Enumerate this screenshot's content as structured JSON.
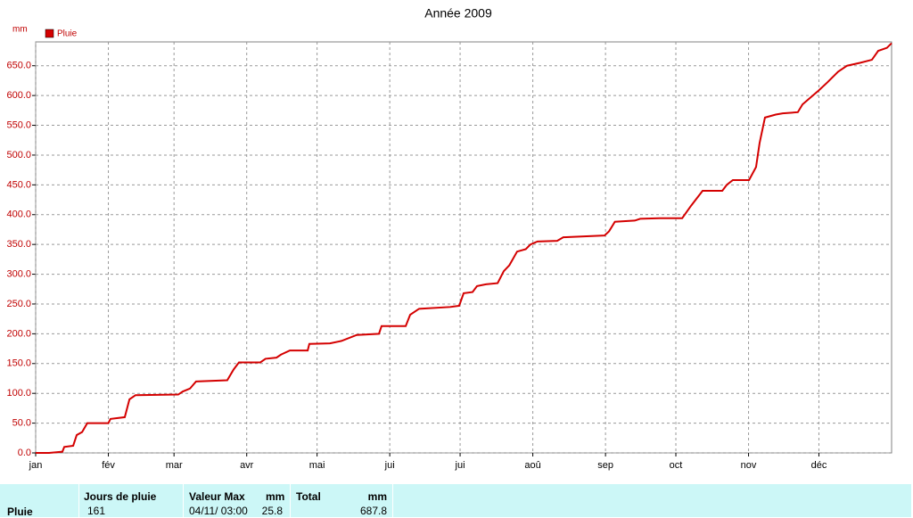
{
  "chart_data": {
    "type": "line",
    "title": "Année 2009",
    "ylabel": "mm",
    "legend": "top-left",
    "grid": true,
    "xlim": [
      0,
      365
    ],
    "ylim": [
      0,
      690
    ],
    "xticks": [
      {
        "value": 0,
        "label": "jan"
      },
      {
        "value": 31,
        "label": "fév"
      },
      {
        "value": 59,
        "label": "mar"
      },
      {
        "value": 90,
        "label": "avr"
      },
      {
        "value": 120,
        "label": "mai"
      },
      {
        "value": 151,
        "label": "jui"
      },
      {
        "value": 181,
        "label": "jui"
      },
      {
        "value": 212,
        "label": "aoû"
      },
      {
        "value": 243,
        "label": "sep"
      },
      {
        "value": 273,
        "label": "oct"
      },
      {
        "value": 304,
        "label": "nov"
      },
      {
        "value": 334,
        "label": "déc"
      }
    ],
    "yticks": [
      {
        "value": 0,
        "label": "0.0"
      },
      {
        "value": 50,
        "label": "50.0"
      },
      {
        "value": 100,
        "label": "100.0"
      },
      {
        "value": 150,
        "label": "150.0"
      },
      {
        "value": 200,
        "label": "200.0"
      },
      {
        "value": 250,
        "label": "250.0"
      },
      {
        "value": 300,
        "label": "300.0"
      },
      {
        "value": 350,
        "label": "350.0"
      },
      {
        "value": 400,
        "label": "400.0"
      },
      {
        "value": 450,
        "label": "450.0"
      },
      {
        "value": 500,
        "label": "500.0"
      },
      {
        "value": 550,
        "label": "550.0"
      },
      {
        "value": 600,
        "label": "600.0"
      },
      {
        "value": 650,
        "label": "650.0"
      }
    ],
    "x": [
      0,
      5.7,
      11.4,
      12.2,
      16,
      17.5,
      19.8,
      22,
      31,
      31.9,
      38,
      40,
      42.6,
      60.8,
      62.7,
      65.8,
      68.4,
      81.7,
      84.4,
      86.7,
      95.8,
      98,
      102.7,
      104.6,
      108.4,
      116,
      116.7,
      125.5,
      130.4,
      136.9,
      146.4,
      147.5,
      157.8,
      159.7,
      163.5,
      176.8,
      180.6,
      182.5,
      186.3,
      188.2,
      192,
      197,
      199.6,
      202,
      205.3,
      209,
      211,
      214,
      222.4,
      225,
      242.6,
      244.5,
      247,
      255.5,
      257.8,
      266,
      275.7,
      279.5,
      284.4,
      292.8,
      294.7,
      297.3,
      304.2,
      307.2,
      308.7,
      311,
      315.6,
      318.6,
      325,
      327,
      330.8,
      333.8,
      337.6,
      342.2,
      346,
      351.7,
      356.6,
      359.3,
      363,
      365
    ],
    "series": [
      {
        "name": "Pluie",
        "color": "#d40000",
        "values": [
          0,
          0,
          2,
          10,
          12,
          30,
          35,
          50,
          50,
          57,
          60,
          90,
          97,
          98,
          103,
          108,
          120,
          122,
          140,
          152,
          152,
          158,
          160,
          165,
          172,
          172,
          183,
          184,
          188,
          198,
          200,
          213,
          213,
          232,
          242,
          245,
          247,
          268,
          270,
          280,
          283,
          285,
          305,
          315,
          338,
          342,
          350,
          355,
          356,
          362,
          365,
          372,
          388,
          390,
          393,
          394,
          394,
          415,
          440,
          440,
          450,
          458,
          458,
          480,
          520,
          563,
          568,
          570,
          572,
          585,
          598,
          608,
          622,
          640,
          650,
          655,
          660,
          675,
          680,
          687.8
        ]
      }
    ]
  },
  "table": {
    "row_label": "Pluie",
    "columns": [
      {
        "header": "Jours de pluie",
        "value": 161
      },
      {
        "header": "Valeur Max",
        "unit": "mm",
        "date": "04/11/ 03:00",
        "value": 25.8
      },
      {
        "header": "Total",
        "unit": "mm",
        "value": 687.8
      }
    ]
  }
}
